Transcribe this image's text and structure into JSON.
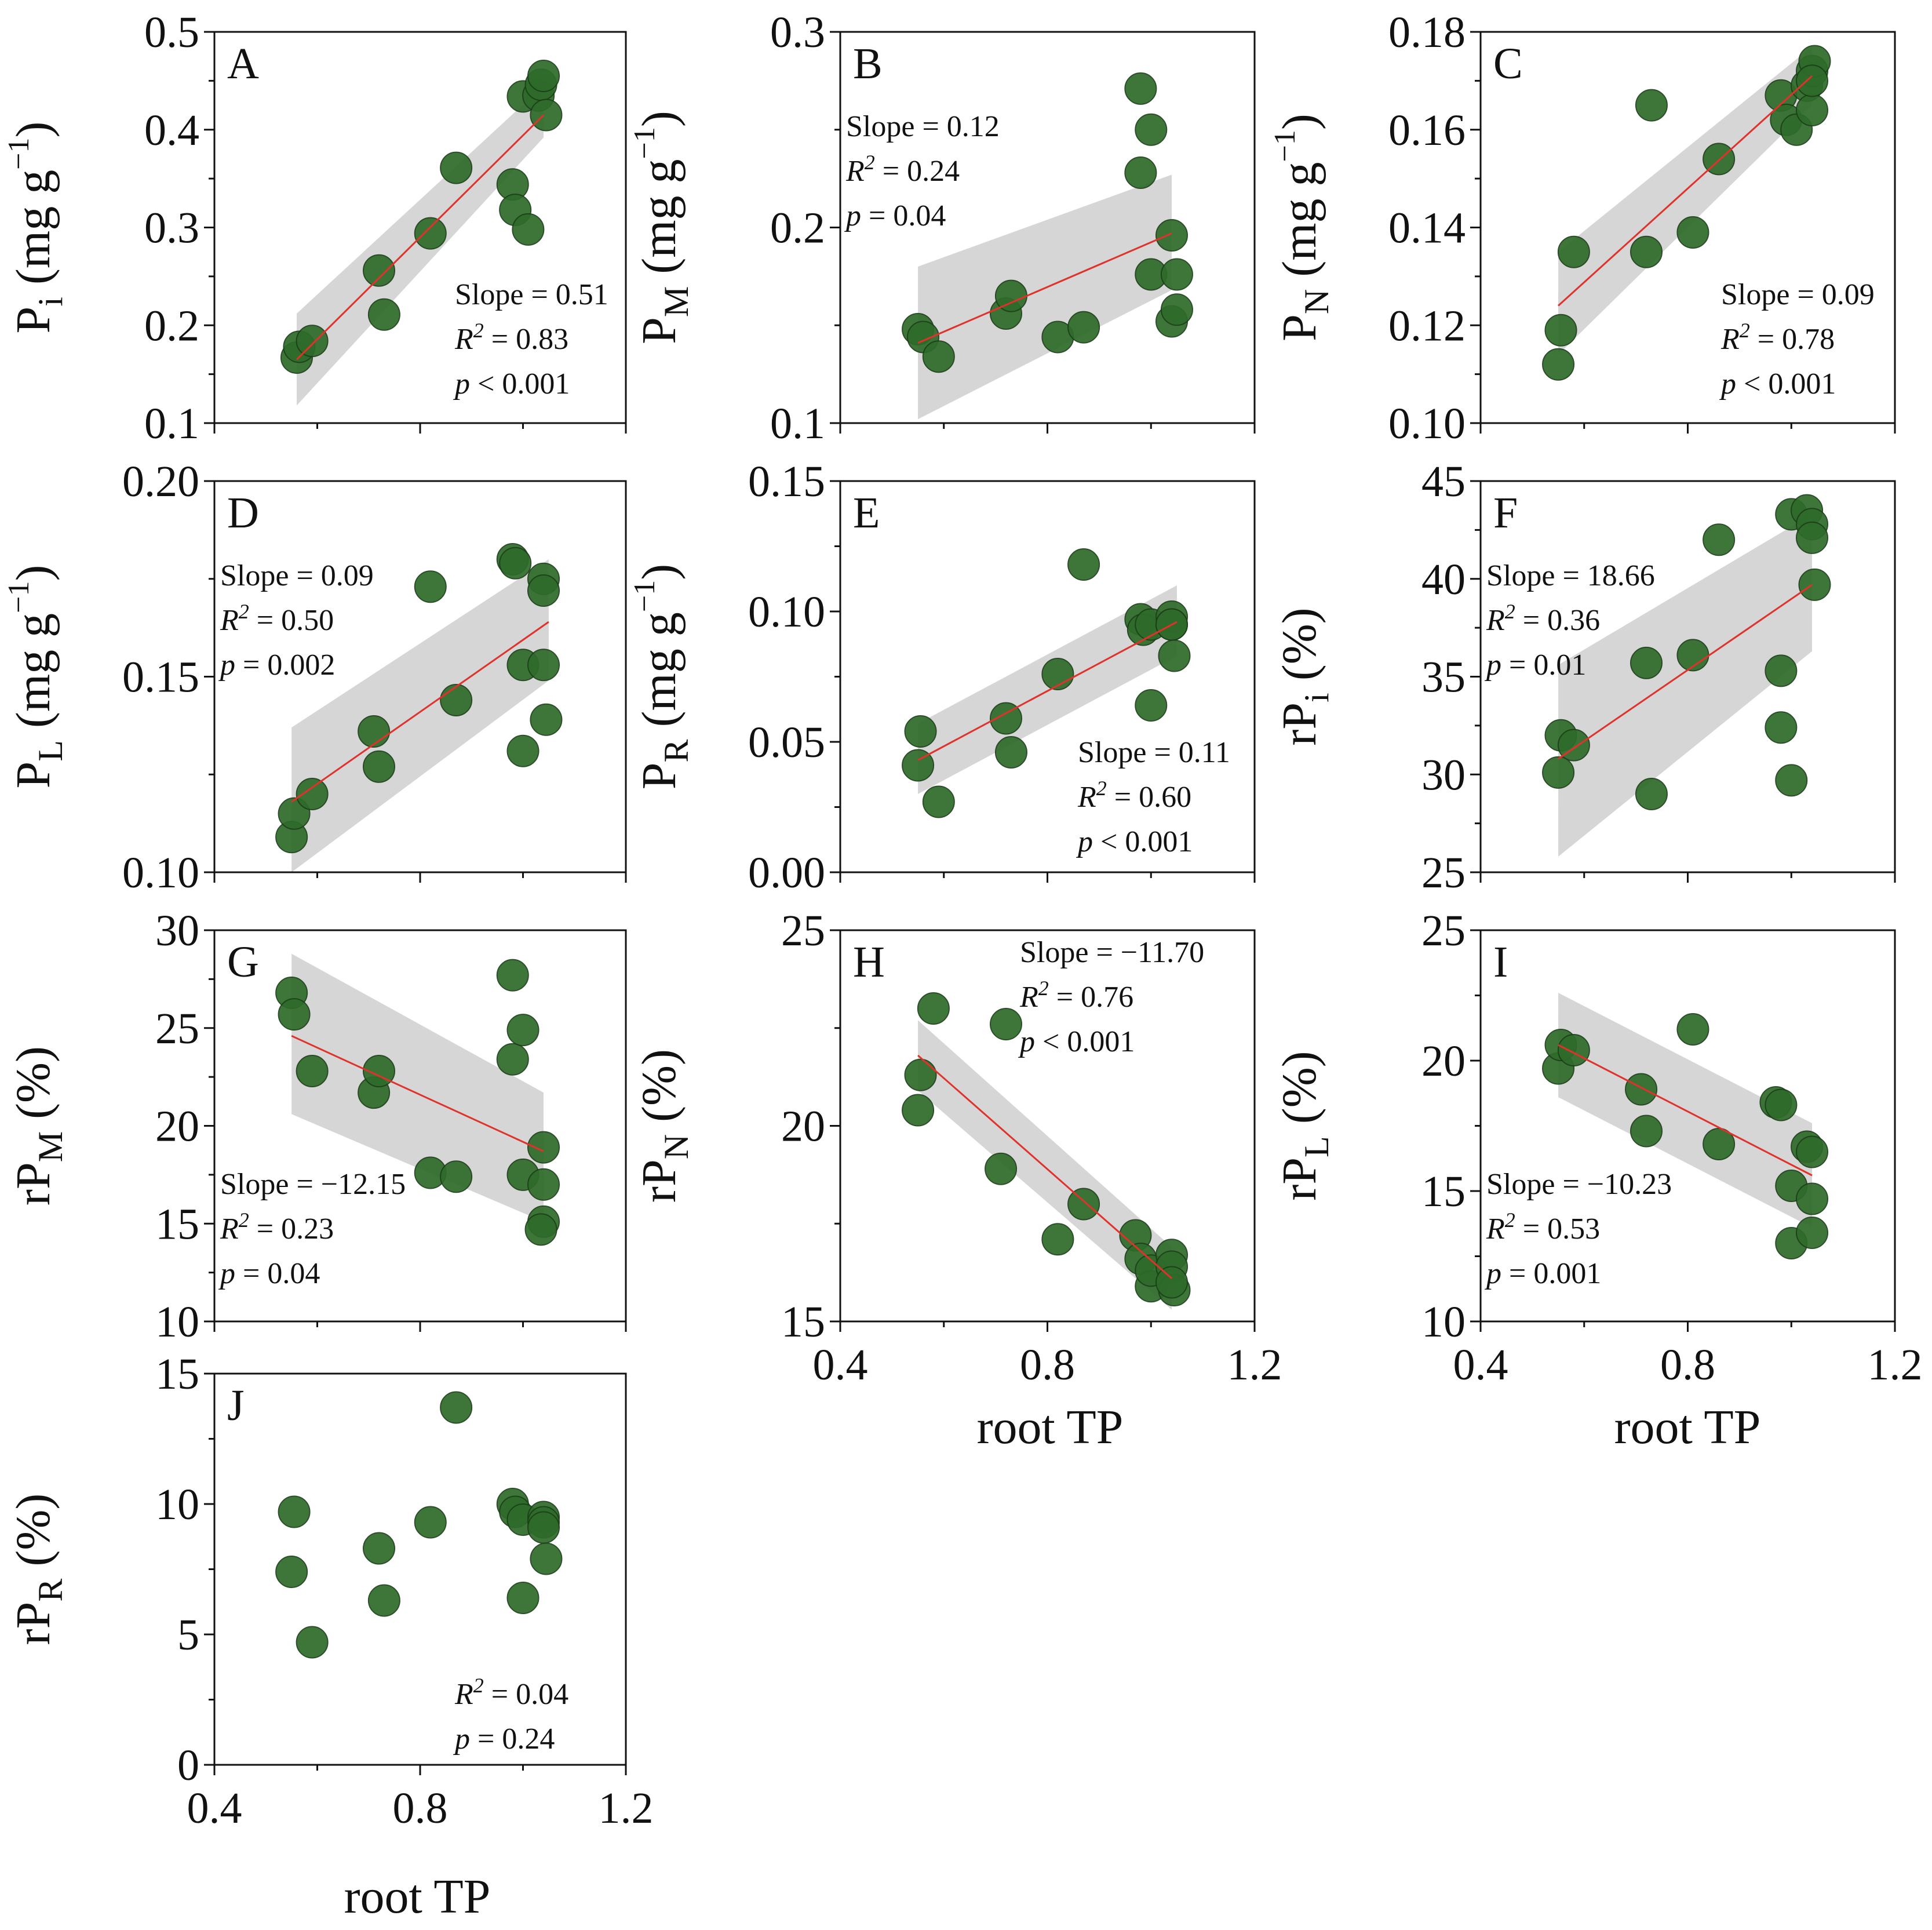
{
  "figure": {
    "marker_color": "#2e6b2a",
    "marker_edge": "#1c3f19",
    "fit_color": "#e0312b",
    "band_color": "#cfcfcf",
    "xlabel": "root TP",
    "x_ticks": [
      0.4,
      0.8,
      1.2
    ],
    "x_tick_labels": [
      "0.4",
      "0.8",
      "1.2"
    ]
  },
  "chart_data": [
    {
      "panel": "A",
      "type": "scatter",
      "ylabel": {
        "base": "P",
        "sub": "i",
        "unit": " (mg g",
        "unit_sup": "−1",
        "unit_end": ")"
      },
      "ylim": [
        0.1,
        0.5
      ],
      "y_ticks": [
        0.1,
        0.2,
        0.3,
        0.4,
        0.5
      ],
      "y_tick_labels": [
        "0.1",
        "0.2",
        "0.3",
        "0.4",
        "0.5"
      ],
      "xlim": [
        0.4,
        1.2
      ],
      "fit": {
        "x": [
          0.56,
          1.04
        ],
        "y": [
          0.165,
          0.415
        ],
        "band_low": [
          0.118,
          0.392
        ],
        "band_high": [
          0.212,
          0.445
        ]
      },
      "stats": {
        "slope": "Slope = 0.51",
        "r2_label": "R",
        "r2_sup": "2",
        "r2_value": " = 0.83",
        "p_label": "p",
        "p_value": " < 0.001"
      },
      "stats_pos": "right",
      "points": [
        [
          0.56,
          0.167
        ],
        [
          0.565,
          0.178
        ],
        [
          0.59,
          0.184
        ],
        [
          0.72,
          0.256
        ],
        [
          0.73,
          0.211
        ],
        [
          0.82,
          0.294
        ],
        [
          0.87,
          0.361
        ],
        [
          0.98,
          0.344
        ],
        [
          0.985,
          0.318
        ],
        [
          1.01,
          0.298
        ],
        [
          1.0,
          0.434
        ],
        [
          1.03,
          0.435
        ],
        [
          1.035,
          0.446
        ],
        [
          1.04,
          0.455
        ],
        [
          1.045,
          0.415
        ]
      ]
    },
    {
      "panel": "B",
      "type": "scatter",
      "ylabel": {
        "base": "P",
        "sub": "M",
        "unit": " (mg g",
        "unit_sup": "−1",
        "unit_end": ")"
      },
      "ylim": [
        0.1,
        0.3
      ],
      "y_ticks": [
        0.1,
        0.2,
        0.3
      ],
      "y_tick_labels": [
        "0.1",
        "0.2",
        "0.3"
      ],
      "xlim": [
        0.4,
        1.2
      ],
      "fit": {
        "x": [
          0.55,
          1.04
        ],
        "y": [
          0.141,
          0.197
        ],
        "band_low": [
          0.102,
          0.168
        ],
        "band_high": [
          0.18,
          0.227
        ]
      },
      "stats": {
        "slope": "Slope = 0.12",
        "r2_label": "R",
        "r2_sup": "2",
        "r2_value": " = 0.24",
        "p_label": "p",
        "p_value": " = 0.04"
      },
      "stats_pos": "left",
      "points": [
        [
          0.55,
          0.148
        ],
        [
          0.56,
          0.144
        ],
        [
          0.59,
          0.134
        ],
        [
          0.72,
          0.156
        ],
        [
          0.73,
          0.165
        ],
        [
          0.82,
          0.144
        ],
        [
          0.87,
          0.149
        ],
        [
          0.98,
          0.271
        ],
        [
          0.98,
          0.228
        ],
        [
          1.0,
          0.25
        ],
        [
          1.0,
          0.176
        ],
        [
          1.04,
          0.196
        ],
        [
          1.04,
          0.152
        ],
        [
          1.05,
          0.176
        ],
        [
          1.05,
          0.158
        ]
      ]
    },
    {
      "panel": "C",
      "type": "scatter",
      "ylabel": {
        "base": "P",
        "sub": "N",
        "unit": " (mg g",
        "unit_sup": "−1",
        "unit_end": ")"
      },
      "ylim": [
        0.1,
        0.18
      ],
      "y_ticks": [
        0.1,
        0.12,
        0.14,
        0.16,
        0.18
      ],
      "y_tick_labels": [
        "0.10",
        "0.12",
        "0.14",
        "0.16",
        "0.18"
      ],
      "xlim": [
        0.4,
        1.2
      ],
      "fit": {
        "x": [
          0.55,
          1.04
        ],
        "y": [
          0.124,
          0.171
        ],
        "band_low": [
          0.114,
          0.165
        ],
        "band_high": [
          0.135,
          0.177
        ]
      },
      "stats": {
        "slope": "Slope = 0.09",
        "r2_label": "R",
        "r2_sup": "2",
        "r2_value": " = 0.78",
        "p_label": "p",
        "p_value": " < 0.001"
      },
      "stats_pos": "right",
      "points": [
        [
          0.55,
          0.112
        ],
        [
          0.555,
          0.119
        ],
        [
          0.58,
          0.135
        ],
        [
          0.72,
          0.135
        ],
        [
          0.73,
          0.165
        ],
        [
          0.81,
          0.139
        ],
        [
          0.86,
          0.154
        ],
        [
          0.98,
          0.167
        ],
        [
          0.99,
          0.162
        ],
        [
          1.01,
          0.16
        ],
        [
          1.03,
          0.169
        ],
        [
          1.04,
          0.164
        ],
        [
          1.04,
          0.172
        ],
        [
          1.045,
          0.174
        ],
        [
          1.04,
          0.17
        ]
      ]
    },
    {
      "panel": "D",
      "type": "scatter",
      "ylabel": {
        "base": "P",
        "sub": "L",
        "unit": " (mg g",
        "unit_sup": "−1",
        "unit_end": ")"
      },
      "ylim": [
        0.1,
        0.2
      ],
      "y_ticks": [
        0.1,
        0.15,
        0.2
      ],
      "y_tick_labels": [
        "0.10",
        "0.15",
        "0.20"
      ],
      "xlim": [
        0.4,
        1.2
      ],
      "fit": {
        "x": [
          0.55,
          1.05
        ],
        "y": [
          0.118,
          0.164
        ],
        "band_low": [
          0.1,
          0.149
        ],
        "band_high": [
          0.137,
          0.18
        ]
      },
      "stats": {
        "slope": "Slope = 0.09",
        "r2_label": "R",
        "r2_sup": "2",
        "r2_value": " = 0.50",
        "p_label": "p",
        "p_value": " = 0.002"
      },
      "stats_pos": "left",
      "points": [
        [
          0.55,
          0.109
        ],
        [
          0.555,
          0.115
        ],
        [
          0.59,
          0.12
        ],
        [
          0.71,
          0.136
        ],
        [
          0.72,
          0.127
        ],
        [
          0.82,
          0.173
        ],
        [
          0.87,
          0.144
        ],
        [
          0.98,
          0.18
        ],
        [
          0.985,
          0.179
        ],
        [
          1.0,
          0.153
        ],
        [
          1.0,
          0.131
        ],
        [
          1.04,
          0.175
        ],
        [
          1.04,
          0.172
        ],
        [
          1.04,
          0.153
        ],
        [
          1.045,
          0.139
        ]
      ]
    },
    {
      "panel": "E",
      "type": "scatter",
      "ylabel": {
        "base": "P",
        "sub": "R",
        "unit": " (mg g",
        "unit_sup": "−1",
        "unit_end": ")"
      },
      "ylim": [
        0.0,
        0.15
      ],
      "y_ticks": [
        0.0,
        0.05,
        0.1,
        0.15
      ],
      "y_tick_labels": [
        "0.00",
        "0.05",
        "0.10",
        "0.15"
      ],
      "xlim": [
        0.4,
        1.2
      ],
      "fit": {
        "x": [
          0.55,
          1.05
        ],
        "y": [
          0.043,
          0.096
        ],
        "band_low": [
          0.03,
          0.083
        ],
        "band_high": [
          0.057,
          0.11
        ]
      },
      "stats": {
        "slope": "Slope = 0.11",
        "r2_label": "R",
        "r2_sup": "2",
        "r2_value": " = 0.60",
        "p_label": "p",
        "p_value": " < 0.001"
      },
      "stats_pos": "right",
      "points": [
        [
          0.55,
          0.041
        ],
        [
          0.555,
          0.054
        ],
        [
          0.59,
          0.027
        ],
        [
          0.72,
          0.059
        ],
        [
          0.73,
          0.046
        ],
        [
          0.82,
          0.076
        ],
        [
          0.87,
          0.118
        ],
        [
          0.98,
          0.097
        ],
        [
          0.985,
          0.093
        ],
        [
          1.0,
          0.095
        ],
        [
          1.0,
          0.064
        ],
        [
          1.04,
          0.098
        ],
        [
          1.04,
          0.095
        ],
        [
          1.045,
          0.083
        ],
        [
          1.04,
          0.095
        ]
      ]
    },
    {
      "panel": "F",
      "type": "scatter",
      "ylabel": {
        "base": "rP",
        "sub": "i",
        "unit": " (%)",
        "unit_sup": "",
        "unit_end": ""
      },
      "ylim": [
        25,
        45
      ],
      "y_ticks": [
        25,
        30,
        35,
        40,
        45
      ],
      "y_tick_labels": [
        "25",
        "30",
        "35",
        "40",
        "45"
      ],
      "xlim": [
        0.4,
        1.2
      ],
      "fit": {
        "x": [
          0.55,
          1.04
        ],
        "y": [
          30.8,
          39.7
        ],
        "band_low": [
          25.8,
          36.3
        ],
        "band_high": [
          35.6,
          43.3
        ]
      },
      "stats": {
        "slope": "Slope = 18.66",
        "r2_label": "R",
        "r2_sup": "2",
        "r2_value": " = 0.36",
        "p_label": "p",
        "p_value": " = 0.01"
      },
      "stats_pos": "left",
      "points": [
        [
          0.55,
          30.1
        ],
        [
          0.555,
          32.0
        ],
        [
          0.58,
          31.5
        ],
        [
          0.72,
          35.7
        ],
        [
          0.73,
          29.0
        ],
        [
          0.81,
          36.1
        ],
        [
          0.86,
          42.0
        ],
        [
          0.98,
          35.3
        ],
        [
          0.98,
          32.4
        ],
        [
          1.0,
          29.7
        ],
        [
          1.0,
          43.3
        ],
        [
          1.03,
          43.5
        ],
        [
          1.04,
          42.8
        ],
        [
          1.04,
          42.1
        ],
        [
          1.045,
          39.7
        ]
      ]
    },
    {
      "panel": "G",
      "type": "scatter",
      "ylabel": {
        "base": "rP",
        "sub": "M",
        "unit": " (%)",
        "unit_sup": "",
        "unit_end": ""
      },
      "ylim": [
        10,
        30
      ],
      "y_ticks": [
        10,
        15,
        20,
        25,
        30
      ],
      "y_tick_labels": [
        "10",
        "15",
        "20",
        "25",
        "30"
      ],
      "xlim": [
        0.4,
        1.2
      ],
      "fit": {
        "x": [
          0.55,
          1.04
        ],
        "y": [
          24.6,
          18.7
        ],
        "band_low": [
          20.6,
          15.1
        ],
        "band_high": [
          28.8,
          21.7
        ]
      },
      "stats": {
        "slope": "Slope = −12.15",
        "r2_label": "R",
        "r2_sup": "2",
        "r2_value": " = 0.23",
        "p_label": "p",
        "p_value": " = 0.04"
      },
      "stats_pos": "left-low",
      "points": [
        [
          0.55,
          26.8
        ],
        [
          0.555,
          25.7
        ],
        [
          0.59,
          22.8
        ],
        [
          0.71,
          21.7
        ],
        [
          0.72,
          22.8
        ],
        [
          0.82,
          17.6
        ],
        [
          0.87,
          17.4
        ],
        [
          0.98,
          27.7
        ],
        [
          0.98,
          23.4
        ],
        [
          1.0,
          24.9
        ],
        [
          1.0,
          17.5
        ],
        [
          1.04,
          18.9
        ],
        [
          1.04,
          17.0
        ],
        [
          1.04,
          15.1
        ],
        [
          1.035,
          14.7
        ]
      ]
    },
    {
      "panel": "H",
      "type": "scatter",
      "ylabel": {
        "base": "rP",
        "sub": "N",
        "unit": " (%)",
        "unit_sup": "",
        "unit_end": ""
      },
      "ylim": [
        15,
        25
      ],
      "y_ticks": [
        15,
        20,
        25
      ],
      "y_tick_labels": [
        "15",
        "20",
        "25"
      ],
      "xlim": [
        0.4,
        1.2
      ],
      "fit": {
        "x": [
          0.55,
          1.04
        ],
        "y": [
          21.8,
          16.1
        ],
        "band_low": [
          20.9,
          15.3
        ],
        "band_high": [
          22.7,
          16.9
        ]
      },
      "stats": {
        "slope": "Slope = −11.70",
        "r2_label": "R",
        "r2_sup": "2",
        "r2_value": " = 0.76",
        "p_label": "p",
        "p_value": " < 0.001"
      },
      "stats_pos": "middle-top",
      "points": [
        [
          0.55,
          20.4
        ],
        [
          0.555,
          21.3
        ],
        [
          0.58,
          23.0
        ],
        [
          0.71,
          18.9
        ],
        [
          0.72,
          22.6
        ],
        [
          0.82,
          17.1
        ],
        [
          0.87,
          18.0
        ],
        [
          0.97,
          17.2
        ],
        [
          0.98,
          16.6
        ],
        [
          1.0,
          15.9
        ],
        [
          1.0,
          16.3
        ],
        [
          1.04,
          16.7
        ],
        [
          1.04,
          16.4
        ],
        [
          1.045,
          15.8
        ],
        [
          1.04,
          16.0
        ]
      ]
    },
    {
      "panel": "I",
      "type": "scatter",
      "ylabel": {
        "base": "rP",
        "sub": "L",
        "unit": " (%)",
        "unit_sup": "",
        "unit_end": ""
      },
      "ylim": [
        10,
        25
      ],
      "y_ticks": [
        10,
        15,
        20,
        25
      ],
      "y_tick_labels": [
        "10",
        "15",
        "20",
        "25"
      ],
      "xlim": [
        0.4,
        1.2
      ],
      "fit": {
        "x": [
          0.55,
          1.04
        ],
        "y": [
          20.6,
          15.6
        ],
        "band_low": [
          18.6,
          13.6
        ],
        "band_high": [
          22.6,
          17.6
        ]
      },
      "stats": {
        "slope": "Slope = −10.23",
        "r2_label": "R",
        "r2_sup": "2",
        "r2_value": " = 0.53",
        "p_label": "p",
        "p_value": " = 0.001"
      },
      "stats_pos": "left-low",
      "points": [
        [
          0.55,
          19.7
        ],
        [
          0.555,
          20.6
        ],
        [
          0.58,
          20.4
        ],
        [
          0.71,
          18.9
        ],
        [
          0.72,
          17.3
        ],
        [
          0.81,
          21.2
        ],
        [
          0.86,
          16.8
        ],
        [
          0.97,
          18.4
        ],
        [
          0.98,
          18.3
        ],
        [
          1.0,
          15.2
        ],
        [
          1.0,
          13.0
        ],
        [
          1.03,
          16.7
        ],
        [
          1.04,
          16.5
        ],
        [
          1.04,
          14.7
        ],
        [
          1.04,
          13.4
        ]
      ]
    },
    {
      "panel": "J",
      "type": "scatter",
      "ylabel": {
        "base": "rP",
        "sub": "R",
        "unit": " (%)",
        "unit_sup": "",
        "unit_end": ""
      },
      "ylim": [
        0,
        15
      ],
      "y_ticks": [
        0,
        5,
        10,
        15
      ],
      "y_tick_labels": [
        "0",
        "5",
        "10",
        "15"
      ],
      "xlim": [
        0.4,
        1.2
      ],
      "fit": null,
      "stats": {
        "slope": "",
        "r2_label": "R",
        "r2_sup": "2",
        "r2_value": " = 0.04",
        "p_label": "p",
        "p_value": " = 0.24"
      },
      "stats_pos": "right",
      "points": [
        [
          0.55,
          7.4
        ],
        [
          0.555,
          9.7
        ],
        [
          0.59,
          4.7
        ],
        [
          0.72,
          8.3
        ],
        [
          0.73,
          6.3
        ],
        [
          0.82,
          9.3
        ],
        [
          0.87,
          13.7
        ],
        [
          0.98,
          10.0
        ],
        [
          0.985,
          9.7
        ],
        [
          1.0,
          9.4
        ],
        [
          1.0,
          6.4
        ],
        [
          1.04,
          9.5
        ],
        [
          1.04,
          9.3
        ],
        [
          1.045,
          7.9
        ],
        [
          1.04,
          9.1
        ]
      ]
    }
  ]
}
